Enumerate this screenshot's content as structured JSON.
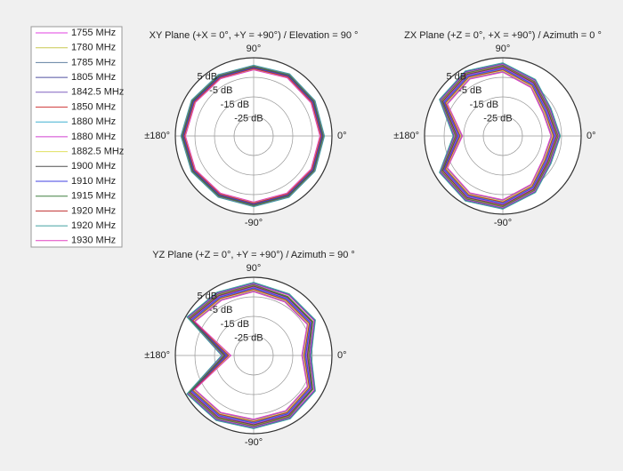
{
  "chart_data": [
    {
      "type": "polar",
      "title": "XY Plane (+X = 0°, +Y = +90°) / Elevation = 90 °",
      "rlim": [
        -35,
        5
      ],
      "rticks": [
        {
          "value": 5,
          "label": "5 dB"
        },
        {
          "value": -5,
          "label": "-5 dB"
        },
        {
          "value": -15,
          "label": "-15 dB"
        },
        {
          "value": -25,
          "label": "-25 dB"
        }
      ],
      "thetaticks": [
        {
          "value": 90,
          "label": "90°"
        },
        {
          "value": 0,
          "label": "0°"
        },
        {
          "value": -90,
          "label": "-90°"
        },
        {
          "value": 180,
          "label": "±180°"
        }
      ],
      "theta": [
        0,
        30,
        60,
        90,
        120,
        150,
        180,
        210,
        240,
        270,
        300,
        330
      ],
      "series": [
        {
          "name": "1755 MHz",
          "color": "#e040e0",
          "values": [
            0,
            0,
            0.5,
            0,
            0,
            0.5,
            1,
            0.5,
            0,
            0,
            0,
            0
          ]
        },
        {
          "name": "1780 MHz",
          "color": "#c8c850",
          "values": [
            0.5,
            0.5,
            1,
            0.5,
            0.5,
            1,
            1.5,
            1,
            0.5,
            0.5,
            0.5,
            0.5
          ]
        },
        {
          "name": "1785 MHz",
          "color": "#6080a0",
          "values": [
            -0.5,
            -0.5,
            0,
            -0.5,
            -0.5,
            0,
            0.5,
            0,
            -0.5,
            -0.5,
            -0.5,
            -0.5
          ]
        },
        {
          "name": "1805 MHz",
          "color": "#5050a0",
          "values": [
            1,
            1,
            1.5,
            1,
            1,
            1.5,
            2,
            1.5,
            1,
            1,
            1,
            1
          ]
        },
        {
          "name": "1842.5 MHz",
          "color": "#8060c0",
          "values": [
            -1,
            -1,
            -0.5,
            -1,
            -1,
            -0.5,
            0,
            -0.5,
            -1,
            -1,
            -1,
            -1
          ]
        },
        {
          "name": "1850 MHz",
          "color": "#d04040",
          "values": [
            0.3,
            0.3,
            0.8,
            0.3,
            0.3,
            0.8,
            1.3,
            0.8,
            0.3,
            0.3,
            0.3,
            0.3
          ]
        },
        {
          "name": "1880 MHz",
          "color": "#40b0d0",
          "values": [
            -0.3,
            -0.3,
            0.2,
            -0.3,
            -0.3,
            0.2,
            0.7,
            0.2,
            -0.3,
            -0.3,
            -0.3,
            -0.3
          ]
        },
        {
          "name": "1880 MHz",
          "color": "#d040d0",
          "values": [
            0.8,
            0.8,
            1.3,
            0.8,
            0.8,
            1.3,
            1.8,
            1.3,
            0.8,
            0.8,
            0.8,
            0.8
          ]
        },
        {
          "name": "1882.5 MHz",
          "color": "#e0e060",
          "values": [
            -0.8,
            -0.8,
            -0.3,
            -0.8,
            -0.8,
            -0.3,
            0.2,
            -0.3,
            -0.8,
            -0.8,
            -0.8,
            -0.8
          ]
        },
        {
          "name": "1900 MHz",
          "color": "#505050",
          "values": [
            0.2,
            0.2,
            0.7,
            0.2,
            0.2,
            0.7,
            1.2,
            0.7,
            0.2,
            0.2,
            0.2,
            0.2
          ]
        },
        {
          "name": "1910 MHz",
          "color": "#4040e0",
          "values": [
            -0.2,
            -0.2,
            0.3,
            -0.2,
            -0.2,
            0.3,
            0.8,
            0.3,
            -0.2,
            -0.2,
            -0.2,
            -0.2
          ]
        },
        {
          "name": "1915 MHz",
          "color": "#408040",
          "values": [
            0.6,
            0.6,
            1.1,
            0.6,
            0.6,
            1.1,
            1.6,
            1.1,
            0.6,
            0.6,
            0.6,
            0.6
          ]
        },
        {
          "name": "1920 MHz",
          "color": "#c03030",
          "values": [
            -0.6,
            -0.6,
            -0.1,
            -0.6,
            -0.6,
            -0.1,
            0.4,
            -0.1,
            -0.6,
            -0.6,
            -0.6,
            -0.6
          ]
        },
        {
          "name": "1920 MHz",
          "color": "#40a0a0",
          "values": [
            1.2,
            1.2,
            1.7,
            1.2,
            1.2,
            1.7,
            2.2,
            1.7,
            1.2,
            1.2,
            1.2,
            1.2
          ]
        },
        {
          "name": "1930 MHz",
          "color": "#e040c0",
          "values": [
            -1.2,
            -1.2,
            -0.7,
            -1.2,
            -1.2,
            -0.7,
            -0.2,
            -0.7,
            -1.2,
            -1.2,
            -1.2,
            -1.2
          ]
        }
      ]
    },
    {
      "type": "polar",
      "title": "ZX Plane (+Z = 0°, +X = +90°) / Azimuth = 0 °",
      "rlim": [
        -35,
        5
      ],
      "rticks": [
        {
          "value": 5,
          "label": "5 dB"
        },
        {
          "value": -5,
          "label": "-5 dB"
        },
        {
          "value": -15,
          "label": "-15 dB"
        },
        {
          "value": -25,
          "label": "-25 dB"
        }
      ],
      "thetaticks": [
        {
          "value": 90,
          "label": "90°"
        },
        {
          "value": 0,
          "label": "0°"
        },
        {
          "value": -90,
          "label": "-90°"
        },
        {
          "value": 180,
          "label": "±180°"
        }
      ],
      "theta": [
        0,
        30,
        60,
        90,
        120,
        150,
        180,
        210,
        240,
        270,
        300,
        330
      ],
      "series": [
        {
          "values": [
            -8,
            -9,
            -4,
            0,
            1,
            0,
            -12,
            0,
            1,
            0,
            -4,
            -9
          ]
        },
        {
          "values": [
            -7,
            -8,
            -3,
            1,
            2,
            1,
            -11,
            1,
            2,
            1,
            -3,
            -8
          ]
        },
        {
          "values": [
            -9,
            -10,
            -5,
            -1,
            0,
            -1,
            -13,
            -1,
            0,
            -1,
            -5,
            -10
          ]
        },
        {
          "values": [
            -6,
            -7,
            -2,
            2,
            3,
            2,
            -10,
            2,
            3,
            2,
            -2,
            -7
          ]
        },
        {
          "values": [
            -10,
            -11,
            -6,
            -2,
            -1,
            -2,
            -14,
            -2,
            -1,
            -2,
            -6,
            -11
          ]
        },
        {
          "values": [
            -7.4,
            -8.4,
            -3.4,
            0.6,
            1.6,
            0.6,
            -11.4,
            0.6,
            1.6,
            0.6,
            -3.4,
            -8.4
          ]
        },
        {
          "values": [
            -8.6,
            -9.6,
            -4.6,
            -0.6,
            0.4,
            -0.6,
            -12.6,
            -0.6,
            0.4,
            -0.6,
            -4.6,
            -9.6
          ]
        },
        {
          "values": [
            -6.4,
            -7.4,
            -2.4,
            1.6,
            2.6,
            1.6,
            -10.4,
            1.6,
            2.6,
            1.6,
            -2.4,
            -7.4
          ]
        },
        {
          "values": [
            -9.6,
            -10.6,
            -5.6,
            -1.6,
            -0.6,
            -1.6,
            -13.6,
            -1.6,
            -0.6,
            -1.6,
            -5.6,
            -10.6
          ]
        },
        {
          "values": [
            -7.6,
            -8.6,
            -3.6,
            0.4,
            1.4,
            0.4,
            -11.6,
            0.4,
            1.4,
            0.4,
            -3.6,
            -8.6
          ]
        },
        {
          "values": [
            -8.4,
            -9.4,
            -4.4,
            -0.4,
            0.6,
            -0.4,
            -12.4,
            -0.4,
            0.6,
            -0.4,
            -4.4,
            -9.4
          ]
        },
        {
          "values": [
            -6.8,
            -7.8,
            -2.8,
            1.2,
            2.2,
            1.2,
            -10.8,
            1.2,
            2.2,
            1.2,
            -2.8,
            -7.8
          ]
        },
        {
          "values": [
            -9.2,
            -10.2,
            -5.2,
            -1.2,
            -0.2,
            -1.2,
            -13.2,
            -1.2,
            -0.2,
            -1.2,
            -5.2,
            -10.2
          ]
        },
        {
          "values": [
            -5.6,
            -6.6,
            -1.6,
            2.4,
            3.4,
            2.4,
            -9.6,
            2.4,
            3.4,
            2.4,
            -1.6,
            -6.6
          ]
        },
        {
          "values": [
            -10.4,
            -11.4,
            -6.4,
            -2.4,
            -1.4,
            -2.4,
            -14.4,
            -2.4,
            -1.4,
            -2.4,
            -6.4,
            -11.4
          ]
        }
      ]
    },
    {
      "type": "polar",
      "title": "YZ Plane (+Z = 0°, +Y = +90°) / Azimuth = 90 °",
      "rlim": [
        -35,
        5
      ],
      "rticks": [
        {
          "value": 5,
          "label": "5 dB"
        },
        {
          "value": -5,
          "label": "-5 dB"
        },
        {
          "value": -15,
          "label": "-15 dB"
        },
        {
          "value": -25,
          "label": "-25 dB"
        }
      ],
      "thetaticks": [
        {
          "value": 90,
          "label": "90°"
        },
        {
          "value": 0,
          "label": "0°"
        },
        {
          "value": -90,
          "label": "-90°"
        },
        {
          "value": 180,
          "label": "±180°"
        }
      ],
      "theta": [
        0,
        30,
        60,
        90,
        120,
        150,
        180,
        210,
        240,
        270,
        300,
        330
      ],
      "series": [
        {
          "values": [
            -8,
            -1,
            -1,
            0,
            0,
            2,
            -21,
            2,
            1,
            0,
            0,
            -1
          ]
        },
        {
          "values": [
            -7,
            0,
            0,
            1,
            1,
            3,
            -20,
            3,
            2,
            1,
            1,
            0
          ]
        },
        {
          "values": [
            -9,
            -2,
            -2,
            -1,
            -1,
            1,
            -22,
            1,
            0,
            -1,
            -1,
            -2
          ]
        },
        {
          "values": [
            -6,
            1,
            1,
            2,
            2,
            4,
            -19,
            4,
            3,
            2,
            2,
            1
          ]
        },
        {
          "values": [
            -10,
            -3,
            -3,
            -2,
            -2,
            0,
            -23,
            0,
            -1,
            -2,
            -2,
            -3
          ]
        },
        {
          "values": [
            -7.4,
            -0.4,
            -0.4,
            0.6,
            0.6,
            2.6,
            -20.4,
            2.6,
            1.6,
            0.6,
            0.6,
            -0.4
          ]
        },
        {
          "values": [
            -8.6,
            -1.6,
            -1.6,
            -0.6,
            -0.6,
            1.4,
            -21.6,
            1.4,
            0.4,
            -0.6,
            -0.6,
            -1.6
          ]
        },
        {
          "values": [
            -6.4,
            0.6,
            0.6,
            1.6,
            1.6,
            3.6,
            -19.4,
            3.6,
            2.6,
            1.6,
            1.6,
            0.6
          ]
        },
        {
          "values": [
            -9.6,
            -2.6,
            -2.6,
            -1.6,
            -1.6,
            0.4,
            -22.6,
            0.4,
            -0.6,
            -1.6,
            -1.6,
            -2.6
          ]
        },
        {
          "values": [
            -7.6,
            -0.6,
            -0.6,
            0.4,
            0.4,
            2.4,
            -20.6,
            2.4,
            1.4,
            0.4,
            0.4,
            -0.6
          ]
        },
        {
          "values": [
            -8.4,
            -1.4,
            -1.4,
            -0.4,
            -0.4,
            1.6,
            -21.4,
            1.6,
            0.6,
            -0.4,
            -0.4,
            -1.4
          ]
        },
        {
          "values": [
            -6.8,
            -0.2,
            -0.2,
            1.2,
            1.2,
            3.2,
            -19.8,
            3.2,
            2.2,
            1.2,
            1.2,
            -0.2
          ]
        },
        {
          "values": [
            -9.2,
            -2.2,
            -2.2,
            -1.2,
            -1.2,
            0.8,
            -22.2,
            0.8,
            -0.2,
            -1.2,
            -1.2,
            -2.2
          ]
        },
        {
          "values": [
            -5.6,
            1.4,
            1.4,
            2.4,
            2.4,
            4.4,
            -18.6,
            4.4,
            3.4,
            2.4,
            2.4,
            1.4
          ]
        },
        {
          "values": [
            -10.4,
            -3.4,
            -3.4,
            -2.4,
            -2.4,
            -0.4,
            -23.4,
            -0.4,
            -1.4,
            -2.4,
            -2.4,
            -3.4
          ]
        }
      ]
    }
  ]
}
